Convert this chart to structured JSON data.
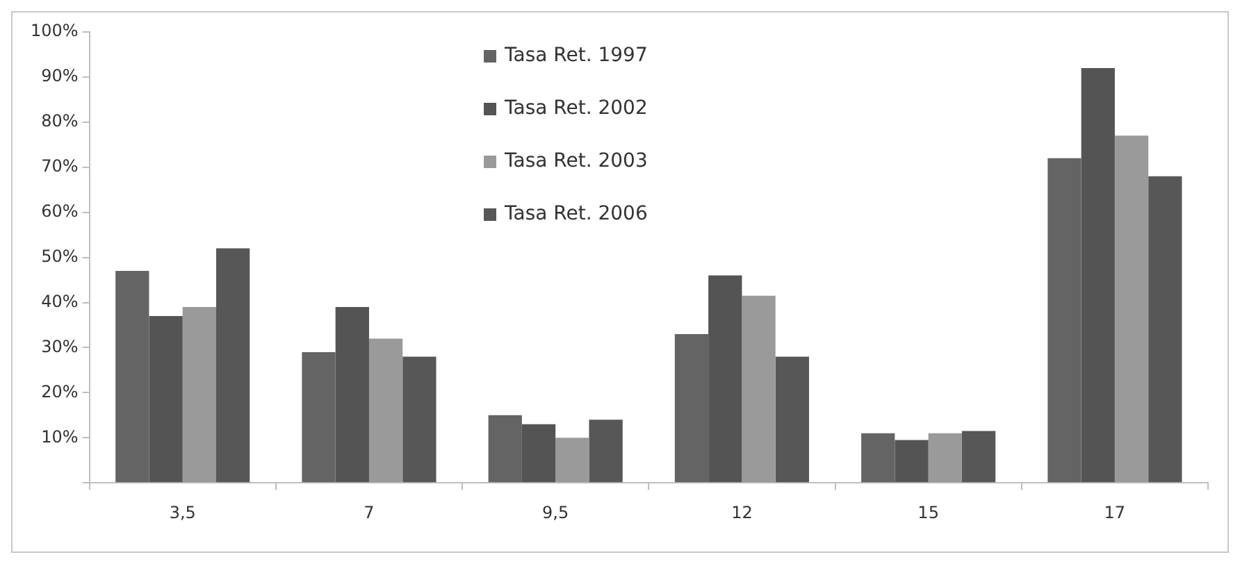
{
  "chart_data": {
    "type": "bar",
    "categories": [
      "3,5",
      "7",
      "9,5",
      "12",
      "15",
      "17"
    ],
    "series": [
      {
        "name": "Tasa Ret. 1997",
        "color": "#646464",
        "values": [
          47,
          29,
          15,
          33,
          11,
          72
        ]
      },
      {
        "name": "Tasa Ret. 2002",
        "color": "#545454",
        "values": [
          37,
          39,
          13,
          46,
          9.5,
          92
        ]
      },
      {
        "name": "Tasa Ret. 2003",
        "color": "#9a9a9a",
        "values": [
          39,
          32,
          10,
          41.5,
          11,
          77
        ]
      },
      {
        "name": "Tasa Ret. 2006",
        "color": "#575757",
        "values": [
          52,
          28,
          14,
          28,
          11.5,
          68
        ]
      }
    ],
    "ylim": [
      0,
      100
    ],
    "yticks": [
      {
        "value": 0,
        "label": null
      },
      {
        "value": 10,
        "label": "10%"
      },
      {
        "value": 20,
        "label": "20%"
      },
      {
        "value": 30,
        "label": "30%"
      },
      {
        "value": 40,
        "label": "40%"
      },
      {
        "value": 50,
        "label": "50%"
      },
      {
        "value": 60,
        "label": "60%"
      },
      {
        "value": 70,
        "label": "70%"
      },
      {
        "value": 80,
        "label": "80%"
      },
      {
        "value": 90,
        "label": "90%"
      },
      {
        "value": 100,
        "label": "100%"
      }
    ],
    "grid": false,
    "legend": "top"
  }
}
